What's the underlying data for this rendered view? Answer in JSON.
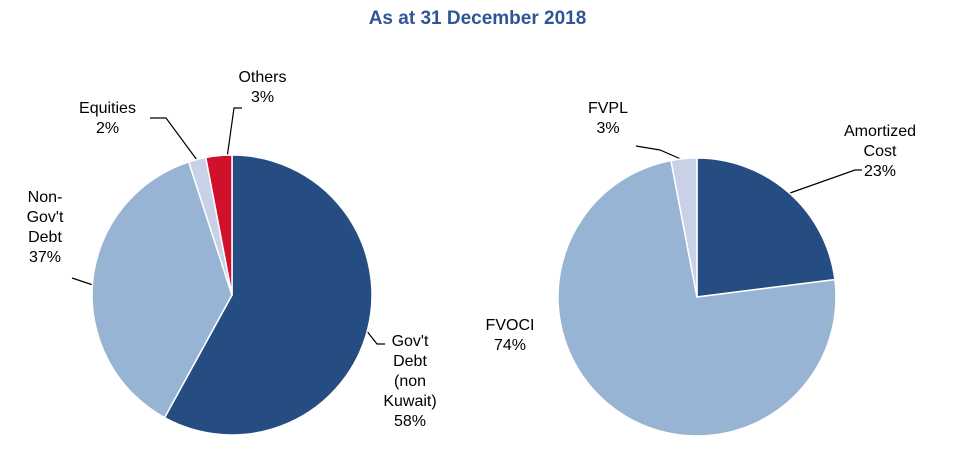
{
  "title": "As at 31 December 2018",
  "chart_data": [
    {
      "type": "pie",
      "categories": [
        "Gov't Debt (non Kuwait)",
        "Non-Gov't Debt",
        "Equities",
        "Others"
      ],
      "values": [
        58,
        37,
        2,
        3
      ],
      "value_labels": [
        "58%",
        "37%",
        "2%",
        "3%"
      ],
      "colors": [
        "#264d82",
        "#98b4d4",
        "#c9d1e6",
        "#d0112b"
      ]
    },
    {
      "type": "pie",
      "categories": [
        "Amortized Cost",
        "FVOCI",
        "FVPL"
      ],
      "values": [
        23,
        74,
        3
      ],
      "value_labels": [
        "23%",
        "74%",
        "3%"
      ],
      "colors": [
        "#264d82",
        "#98b4d4",
        "#c9d1e6"
      ]
    }
  ]
}
